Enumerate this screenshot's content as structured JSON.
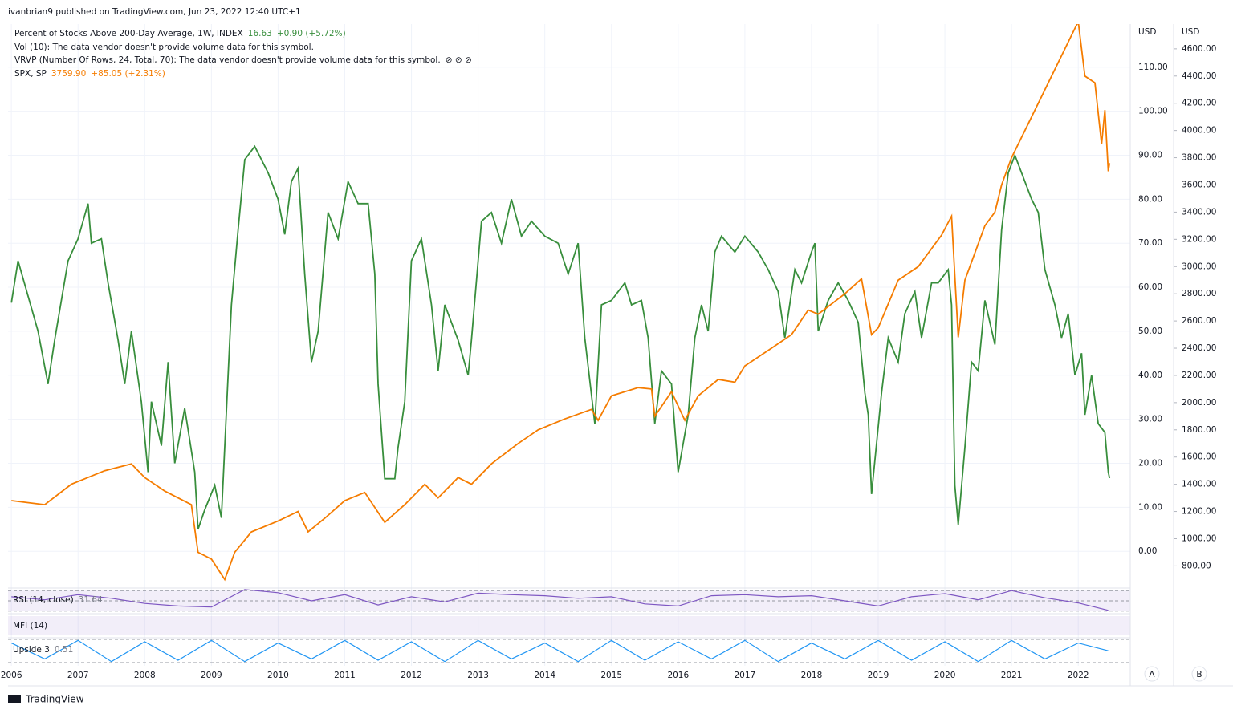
{
  "header": {
    "publisher": "ivanbrian9 published on TradingView.com, Jun 23, 2022 12:40 UTC+1"
  },
  "legend": [
    {
      "name": "Percent of Stocks Above 200-Day Average, 1W, INDEX",
      "last": "16.63",
      "change": "+0.90 (+5.72%)"
    },
    {
      "name": "Vol (10): The data vendor doesn't provide volume data for this symbol."
    },
    {
      "name": "VRVP (Number Of Rows, 24, Total, 70): The data vendor doesn't provide volume data for this symbol.",
      "icons": "⊘ ⊘ ⊘"
    },
    {
      "name": "SPX, SP",
      "last": "3759.90",
      "change": "+85.05 (+2.31%)"
    }
  ],
  "chart_data": {
    "type": "line",
    "grid": true,
    "xlim": [
      2005.95,
      2022.78
    ],
    "xticks": [
      2006,
      2007,
      2008,
      2009,
      2010,
      2011,
      2012,
      2013,
      2014,
      2015,
      2016,
      2017,
      2018,
      2019,
      2020,
      2021,
      2022
    ],
    "axis_units": [
      "USD",
      "USD"
    ],
    "ylim": [
      -7.8,
      119.8
    ],
    "yticks": [
      {
        "value": 0,
        "label": "0.00"
      },
      {
        "value": 10,
        "label": "10.00"
      },
      {
        "value": 20,
        "label": "20.00"
      },
      {
        "value": 30,
        "label": "30.00"
      },
      {
        "value": 40,
        "label": "40.00"
      },
      {
        "value": 50,
        "label": "50.00"
      },
      {
        "value": 60,
        "label": "60.00"
      },
      {
        "value": 70,
        "label": "70.00"
      },
      {
        "value": 80,
        "label": "80.00"
      },
      {
        "value": 90,
        "label": "90.00"
      },
      {
        "value": 100,
        "label": "100.00"
      },
      {
        "value": 110,
        "label": "110.00"
      }
    ],
    "y2lim": [
      655,
      4782
    ],
    "y2ticks": [
      {
        "value": 800,
        "label": "800.00"
      },
      {
        "value": 1000,
        "label": "1000.00"
      },
      {
        "value": 1200,
        "label": "1200.00"
      },
      {
        "value": 1400,
        "label": "1400.00"
      },
      {
        "value": 1600,
        "label": "1600.00"
      },
      {
        "value": 1800,
        "label": "1800.00"
      },
      {
        "value": 2000,
        "label": "2000.00"
      },
      {
        "value": 2200,
        "label": "2200.00"
      },
      {
        "value": 2400,
        "label": "2400.00"
      },
      {
        "value": 2600,
        "label": "2600.00"
      },
      {
        "value": 2800,
        "label": "2800.00"
      },
      {
        "value": 3000,
        "label": "3000.00"
      },
      {
        "value": 3200,
        "label": "3200.00"
      },
      {
        "value": 3400,
        "label": "3400.00"
      },
      {
        "value": 3600,
        "label": "3600.00"
      },
      {
        "value": 3800,
        "label": "3800.00"
      },
      {
        "value": 4000,
        "label": "4000.00"
      },
      {
        "value": 4200,
        "label": "4200.00"
      },
      {
        "value": 4400,
        "label": "4400.00"
      },
      {
        "value": 4600,
        "label": "4600.00"
      }
    ],
    "series": [
      {
        "name": "Percent of Stocks Above 200-Day Average",
        "color": "#388e3c",
        "axis": "y",
        "x": [
          2006.0,
          2006.1,
          2006.4,
          2006.55,
          2006.65,
          2006.85,
          2007.0,
          2007.15,
          2007.2,
          2007.35,
          2007.45,
          2007.6,
          2007.7,
          2007.8,
          2007.95,
          2008.05,
          2008.1,
          2008.25,
          2008.35,
          2008.45,
          2008.6,
          2008.75,
          2008.8,
          2008.9,
          2009.05,
          2009.15,
          2009.3,
          2009.4,
          2009.5,
          2009.65,
          2009.85,
          2010.0,
          2010.1,
          2010.2,
          2010.3,
          2010.4,
          2010.5,
          2010.6,
          2010.75,
          2010.9,
          2011.05,
          2011.2,
          2011.35,
          2011.45,
          2011.5,
          2011.6,
          2011.75,
          2011.8,
          2011.9,
          2012.0,
          2012.15,
          2012.3,
          2012.4,
          2012.5,
          2012.7,
          2012.85,
          2012.9,
          2013.05,
          2013.2,
          2013.35,
          2013.5,
          2013.65,
          2013.8,
          2014.0,
          2014.2,
          2014.35,
          2014.5,
          2014.6,
          2014.75,
          2014.85,
          2015.0,
          2015.2,
          2015.3,
          2015.45,
          2015.55,
          2015.65,
          2015.75,
          2015.9,
          2016.0,
          2016.15,
          2016.25,
          2016.35,
          2016.45,
          2016.55,
          2016.65,
          2016.85,
          2017.0,
          2017.2,
          2017.35,
          2017.5,
          2017.6,
          2017.75,
          2017.85,
          2018.0,
          2018.05,
          2018.1,
          2018.25,
          2018.4,
          2018.55,
          2018.7,
          2018.8,
          2018.85,
          2018.9,
          2019.05,
          2019.15,
          2019.3,
          2019.4,
          2019.55,
          2019.65,
          2019.8,
          2019.9,
          2020.05,
          2020.1,
          2020.15,
          2020.2,
          2020.3,
          2020.4,
          2020.5,
          2020.6,
          2020.75,
          2020.85,
          2020.95,
          2021.05,
          2021.15,
          2021.3,
          2021.4,
          2021.5,
          2021.65,
          2021.75,
          2021.85,
          2021.95,
          2022.05,
          2022.1,
          2022.2,
          2022.3,
          2022.4,
          2022.45,
          2022.47
        ],
        "values": [
          56.5,
          66,
          50,
          38,
          48,
          66,
          71,
          79,
          70,
          71,
          61,
          48,
          38,
          50,
          34,
          18,
          34,
          24,
          43,
          20,
          32.5,
          18,
          5,
          9.4,
          15,
          7.6,
          56,
          73,
          89,
          92,
          86,
          80,
          72,
          84,
          87,
          63,
          43,
          50,
          77,
          71,
          84,
          79,
          79,
          63,
          38,
          16.5,
          16.5,
          23.6,
          34,
          66,
          71,
          56,
          41,
          56,
          48,
          40,
          48,
          75,
          77,
          70,
          80,
          71.6,
          75,
          71.6,
          70,
          63,
          70,
          48.5,
          29,
          56,
          57,
          61,
          56,
          57,
          48.5,
          29,
          41,
          38,
          18,
          31,
          48.5,
          56,
          50,
          68,
          71.6,
          68,
          71.6,
          68,
          64,
          59,
          48.5,
          64,
          61,
          68,
          70,
          50,
          57,
          61,
          57,
          52,
          36,
          31,
          13,
          36,
          48.5,
          43,
          54,
          59,
          48.5,
          61,
          61,
          64,
          56,
          15,
          6,
          23.6,
          43,
          41,
          57,
          47,
          73,
          86,
          90,
          86,
          80,
          77,
          64,
          56,
          48.5,
          54,
          40,
          45,
          31,
          40,
          29,
          27,
          18,
          16.63
        ]
      },
      {
        "name": "SPX",
        "color": "#f57c00",
        "axis": "y2",
        "x": [
          2006.0,
          2006.5,
          2006.9,
          2007.4,
          2007.8,
          2008.0,
          2008.3,
          2008.5,
          2008.7,
          2008.8,
          2009.0,
          2009.2,
          2009.35,
          2009.6,
          2010.0,
          2010.3,
          2010.45,
          2010.7,
          2011.0,
          2011.3,
          2011.6,
          2011.9,
          2012.2,
          2012.4,
          2012.7,
          2012.9,
          2013.2,
          2013.6,
          2013.9,
          2014.3,
          2014.7,
          2014.8,
          2015.0,
          2015.4,
          2015.6,
          2015.65,
          2015.9,
          2016.1,
          2016.3,
          2016.6,
          2016.85,
          2017.0,
          2017.4,
          2017.7,
          2017.95,
          2018.1,
          2018.5,
          2018.75,
          2018.9,
          2019.0,
          2019.3,
          2019.6,
          2019.95,
          2020.1,
          2020.2,
          2020.3,
          2020.6,
          2020.75,
          2020.85,
          2021.0,
          2021.3,
          2021.6,
          2021.9,
          2022.0,
          2022.1,
          2022.25,
          2022.35,
          2022.4,
          2022.45,
          2022.47
        ],
        "values": [
          1280,
          1250,
          1400,
          1500,
          1550,
          1450,
          1350,
          1300,
          1250,
          900,
          850,
          700,
          900,
          1050,
          1130,
          1200,
          1050,
          1150,
          1280,
          1340,
          1120,
          1250,
          1400,
          1300,
          1450,
          1400,
          1550,
          1700,
          1800,
          1880,
          1950,
          1870,
          2050,
          2110,
          2100,
          1900,
          2080,
          1870,
          2050,
          2170,
          2150,
          2270,
          2400,
          2500,
          2680,
          2650,
          2800,
          2910,
          2500,
          2550,
          2900,
          3000,
          3230,
          3370,
          2480,
          2900,
          3300,
          3400,
          3600,
          3800,
          4100,
          4400,
          4700,
          4800,
          4400,
          4350,
          3900,
          4150,
          3700,
          3760
        ]
      }
    ],
    "panels": [
      {
        "name": "RSI (14, close)",
        "last": "31.64",
        "color": "#7e57c2",
        "ylim": [
          25,
          75
        ],
        "bands": [
          70,
          50,
          30
        ],
        "x": [
          2006.0,
          2006.5,
          2007.0,
          2007.5,
          2008.0,
          2008.5,
          2009.0,
          2009.5,
          2010.0,
          2010.5,
          2011.0,
          2011.5,
          2012.0,
          2012.5,
          2013.0,
          2013.5,
          2014.0,
          2014.5,
          2015.0,
          2015.5,
          2016.0,
          2016.5,
          2017.0,
          2017.5,
          2018.0,
          2018.5,
          2019.0,
          2019.5,
          2020.0,
          2020.5,
          2021.0,
          2021.5,
          2022.0,
          2022.45
        ],
        "values": [
          58,
          52,
          62,
          55,
          45,
          40,
          38,
          72,
          66,
          50,
          62,
          42,
          58,
          48,
          65,
          62,
          60,
          55,
          58,
          44,
          40,
          60,
          62,
          58,
          60,
          50,
          40,
          58,
          64,
          52,
          70,
          56,
          46,
          31.64
        ]
      },
      {
        "name": "MFI (14)"
      },
      {
        "name": "Upside 3",
        "last": "0.51",
        "color": "#2196f3",
        "ylim": [
          0,
          1
        ],
        "x": [
          2006.0,
          2006.5,
          2007.0,
          2007.5,
          2008.0,
          2008.5,
          2009.0,
          2009.5,
          2010.0,
          2010.5,
          2011.0,
          2011.5,
          2012.0,
          2012.5,
          2013.0,
          2013.5,
          2014.0,
          2014.5,
          2015.0,
          2015.5,
          2016.0,
          2016.5,
          2017.0,
          2017.5,
          2018.0,
          2018.5,
          2019.0,
          2019.5,
          2020.0,
          2020.5,
          2021.0,
          2021.5,
          2022.0,
          2022.45
        ],
        "values": [
          0.8,
          0.2,
          0.9,
          0.1,
          0.85,
          0.15,
          0.9,
          0.1,
          0.8,
          0.2,
          0.9,
          0.15,
          0.85,
          0.1,
          0.9,
          0.2,
          0.8,
          0.1,
          0.9,
          0.15,
          0.85,
          0.2,
          0.9,
          0.1,
          0.8,
          0.2,
          0.9,
          0.15,
          0.85,
          0.1,
          0.9,
          0.2,
          0.8,
          0.51
        ]
      }
    ]
  },
  "buttons": [
    "A",
    "B"
  ],
  "footer": {
    "brand": "TradingView"
  }
}
